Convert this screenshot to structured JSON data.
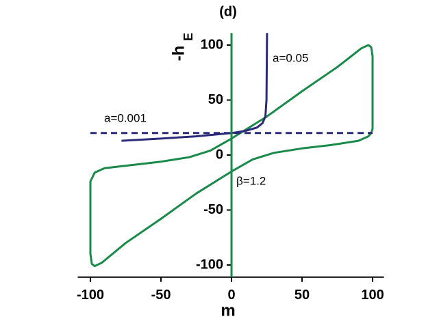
{
  "chart_data": {
    "type": "line",
    "title": "(d)",
    "x_label": "m",
    "y_label": "-h",
    "y_label_sub": "E",
    "xlim": [
      -109,
      108
    ],
    "ylim": [
      -111,
      111
    ],
    "xticks": [
      -100,
      -50,
      0,
      50,
      100
    ],
    "yticks": [
      -100,
      -50,
      0,
      50,
      100
    ],
    "x_axis_color": "#000000",
    "y_axis_color": "#1a8a4a",
    "series": [
      {
        "name": "β=1.2",
        "color": "#1a8a4a",
        "closed": true,
        "dashed": false,
        "x": [
          -100,
          -100,
          -97,
          -90,
          -70,
          -50,
          -30,
          -15,
          0,
          25,
          50,
          75,
          92,
          97,
          99,
          100,
          100,
          99,
          97,
          90,
          70,
          50,
          30,
          15,
          0,
          -25,
          -50,
          -75,
          -92,
          -97,
          -99,
          -100
        ],
        "values": [
          -90,
          -24,
          -16,
          -12,
          -9,
          -6,
          -2,
          4,
          15,
          35,
          58,
          80,
          97,
          100,
          98,
          90,
          24,
          20,
          17,
          13,
          9,
          6,
          2,
          -4,
          -15,
          -35,
          -58,
          -80,
          -98,
          -101,
          -99,
          -90
        ]
      },
      {
        "name": "a=0.05",
        "color": "#2b2a7a",
        "closed": false,
        "dashed": false,
        "x": [
          -78,
          -50,
          -25,
          0,
          10,
          18,
          22,
          24,
          24.8,
          25,
          25.2
        ],
        "values": [
          13,
          15,
          17,
          20,
          22,
          25,
          29,
          35,
          50,
          80,
          111
        ]
      },
      {
        "name": "a=0.001",
        "color": "#2b2a7a",
        "closed": false,
        "dashed": true,
        "x": [
          -100,
          100
        ],
        "values": [
          20,
          20
        ]
      }
    ]
  }
}
